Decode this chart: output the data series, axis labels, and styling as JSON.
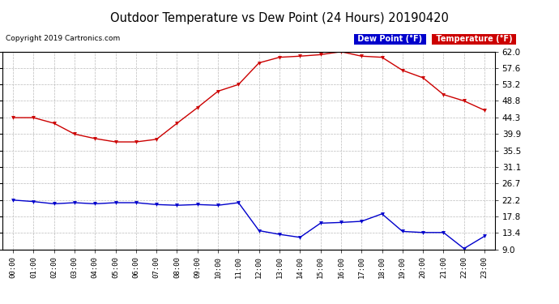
{
  "title": "Outdoor Temperature vs Dew Point (24 Hours) 20190420",
  "copyright": "Copyright 2019 Cartronics.com",
  "hours": [
    "00:00",
    "01:00",
    "02:00",
    "03:00",
    "04:00",
    "05:00",
    "06:00",
    "07:00",
    "08:00",
    "09:00",
    "10:00",
    "11:00",
    "12:00",
    "13:00",
    "14:00",
    "15:00",
    "16:00",
    "17:00",
    "18:00",
    "19:00",
    "20:00",
    "21:00",
    "22:00",
    "23:00"
  ],
  "temperature": [
    44.3,
    44.3,
    42.8,
    39.9,
    38.7,
    37.8,
    37.8,
    38.5,
    42.8,
    47.0,
    51.4,
    53.2,
    59.0,
    60.5,
    60.8,
    61.2,
    62.0,
    60.8,
    60.5,
    57.0,
    55.0,
    50.5,
    48.8,
    46.3
  ],
  "dewpoint": [
    22.2,
    21.8,
    21.2,
    21.5,
    21.2,
    21.5,
    21.5,
    21.0,
    20.8,
    21.0,
    20.8,
    21.5,
    14.0,
    13.0,
    12.2,
    16.0,
    16.2,
    16.5,
    18.5,
    13.8,
    13.5,
    13.5,
    9.2,
    12.5
  ],
  "temp_color": "#cc0000",
  "dew_color": "#0000cc",
  "bg_color": "#ffffff",
  "grid_color": "#bbbbbb",
  "ylim_min": 9.0,
  "ylim_max": 62.0,
  "yticks": [
    9.0,
    13.4,
    17.8,
    22.2,
    26.7,
    31.1,
    35.5,
    39.9,
    44.3,
    48.8,
    53.2,
    57.6,
    62.0
  ],
  "legend_dew_bg": "#0000cc",
  "legend_temp_bg": "#cc0000",
  "legend_dew_label": "Dew Point (°F)",
  "legend_temp_label": "Temperature (°F)"
}
